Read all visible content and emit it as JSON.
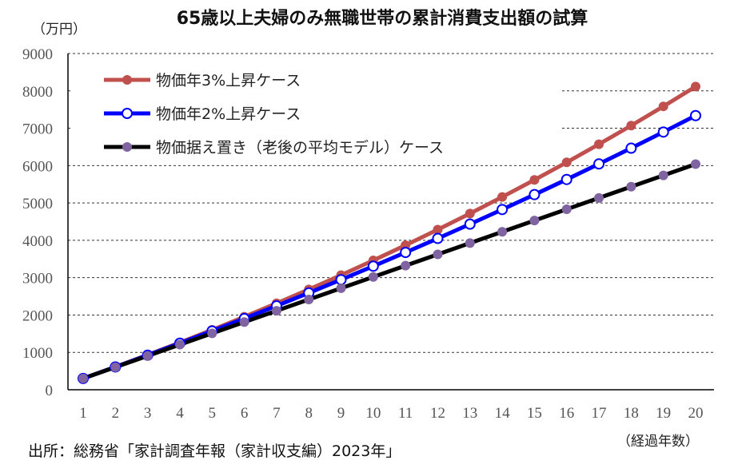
{
  "chart_data": {
    "type": "line",
    "title": "65歳以上夫婦のみ無職世帯の累計消費支出額の試算",
    "ylabel": "（万円）",
    "xlabel": "（経過年数）",
    "source": "出所：総務省「家計調査年報（家計収支編）2023年」",
    "ylim": [
      0,
      9000
    ],
    "yticks": [
      0,
      1000,
      2000,
      3000,
      4000,
      5000,
      6000,
      7000,
      8000,
      9000
    ],
    "x": [
      1,
      2,
      3,
      4,
      5,
      6,
      7,
      8,
      9,
      10,
      11,
      12,
      13,
      14,
      15,
      16,
      17,
      18,
      19,
      20
    ],
    "grid": true,
    "legend_position": "top-left",
    "series": [
      {
        "name": "物価年3%上昇ケース",
        "color": "#c0504d",
        "marker_fill": "#c0504d",
        "values": [
          302,
          613,
          933,
          1263,
          1603,
          1953,
          2314,
          2685,
          3068,
          3462,
          3868,
          4286,
          4717,
          5160,
          5617,
          6087,
          6572,
          7071,
          7585,
          8115
        ]
      },
      {
        "name": "物価年2%上昇ケース",
        "color": "#0000ff",
        "marker_fill": "#ffffff",
        "values": [
          302,
          610,
          924,
          1245,
          1572,
          1905,
          2245,
          2592,
          2946,
          3307,
          3675,
          4050,
          4433,
          4824,
          5223,
          5629,
          6044,
          6466,
          6898,
          7338
        ]
      },
      {
        "name": "物価据え置き（老後の平均モデル）ケース",
        "color": "#000000",
        "marker_fill": "#8064a2",
        "values": [
          302,
          604,
          906,
          1208,
          1510,
          1812,
          2114,
          2416,
          2718,
          3020,
          3322,
          3624,
          3926,
          4228,
          4530,
          4832,
          5134,
          5436,
          5738,
          6040
        ]
      }
    ]
  }
}
